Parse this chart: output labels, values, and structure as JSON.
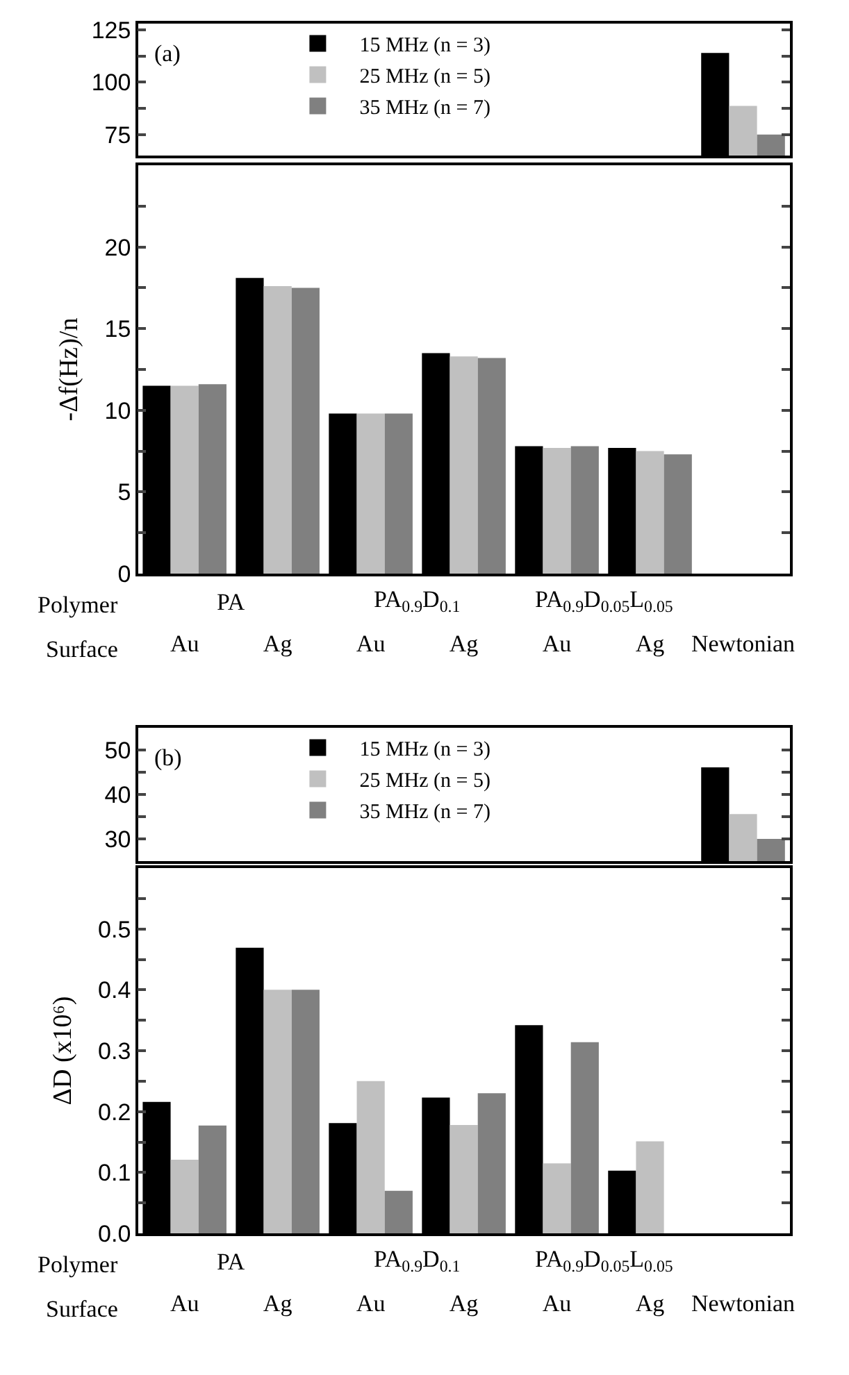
{
  "chart_data": [
    {
      "type": "bar",
      "categories": [
        null,
        null,
        null,
        null,
        null,
        null,
        null
      ],
      "tick_labels": "y",
      "legend": "top left",
      "annotations": [
        "(a)"
      ],
      "ylim": [
        65,
        128
      ],
      "yticks": [
        75,
        {
          "value": 87.5,
          "label": null
        },
        100,
        {
          "value": 112.5,
          "label": null
        },
        125
      ],
      "series": [
        {
          "name": "15 MHz (n = 3)",
          "color": "#000000",
          "values": [
            null,
            null,
            null,
            null,
            null,
            null,
            114
          ]
        },
        {
          "name": "25 MHz (n = 5)",
          "color": "#c0c0c0",
          "values": [
            null,
            null,
            null,
            null,
            null,
            null,
            88.7
          ]
        },
        {
          "name": "35 MHz (n = 7)",
          "color": "#808080",
          "values": [
            null,
            null,
            null,
            null,
            null,
            null,
            75
          ]
        }
      ]
    },
    {
      "type": "bar",
      "categories": [
        "Au",
        "Ag",
        "Au",
        "Ag",
        "Au",
        "Ag",
        "Newtonian"
      ],
      "ylabel": "-Δf(Hz)/n",
      "annotations": [
        "Polymer",
        "Surface",
        "PA",
        "PA$_{0.9}$D$_{0.1}$",
        "PA$_{0.9}$D$_{0.05}$L$_{0.05}$"
      ],
      "ylim": [
        0,
        25
      ],
      "yticks": [
        0,
        {
          "value": 2.5,
          "label": null
        },
        5,
        {
          "value": 7.5,
          "label": null
        },
        10,
        {
          "value": 12.5,
          "label": null
        },
        15,
        {
          "value": 17.5,
          "label": null
        },
        20,
        {
          "value": 22.5,
          "label": null
        }
      ],
      "series": [
        {
          "color": "#000000",
          "values": [
            11.5,
            18.1,
            9.8,
            13.5,
            7.8,
            7.7,
            null
          ]
        },
        {
          "color": "#c0c0c0",
          "values": [
            11.5,
            17.6,
            9.8,
            13.3,
            7.7,
            7.5,
            null
          ]
        },
        {
          "color": "#808080",
          "values": [
            11.6,
            17.5,
            9.8,
            13.2,
            7.8,
            7.3,
            null
          ]
        }
      ]
    },
    {
      "type": "bar",
      "categories": [
        null,
        null,
        null,
        null,
        null,
        null,
        null
      ],
      "tick_labels": "y",
      "legend": "top left",
      "annotations": [
        "(b)"
      ],
      "ylim": [
        25,
        55
      ],
      "yticks": [
        30,
        {
          "value": 35,
          "label": null
        },
        40,
        {
          "value": 45,
          "label": null
        },
        50
      ],
      "series": [
        {
          "name": "15 MHz (n = 3)",
          "color": "#000000",
          "values": [
            null,
            null,
            null,
            null,
            null,
            null,
            46.1
          ]
        },
        {
          "name": "25 MHz (n = 5)",
          "color": "#c0c0c0",
          "values": [
            null,
            null,
            null,
            null,
            null,
            null,
            35.6
          ]
        },
        {
          "name": "35 MHz (n = 7)",
          "color": "#808080",
          "values": [
            null,
            null,
            null,
            null,
            null,
            null,
            30
          ]
        }
      ]
    },
    {
      "type": "bar",
      "categories": [
        "Au",
        "Ag",
        "Au",
        "Ag",
        "Au",
        "Ag",
        "Newtonian"
      ],
      "ylabel": "ΔD (x10⁶)",
      "annotations": [
        "Polymer",
        "Surface",
        "PA",
        "PA$_{0.9}$D$_{0.1}$",
        "PA$_{0.9}$D$_{0.05}$L$_{0.05}$"
      ],
      "ylim": [
        0,
        0.6
      ],
      "yticks": [
        {
          "value": 0,
          "label": "0.0"
        },
        {
          "value": 0.05,
          "label": null
        },
        0.1,
        {
          "value": 0.15,
          "label": null
        },
        0.2,
        {
          "value": 0.25,
          "label": null
        },
        0.3,
        {
          "value": 0.35,
          "label": null
        },
        0.4,
        {
          "value": 0.45,
          "label": null
        },
        0.5,
        {
          "value": 0.55,
          "label": null
        }
      ],
      "series": [
        {
          "color": "#000000",
          "values": [
            0.216,
            0.469,
            0.181,
            0.223,
            0.342,
            0.103,
            null
          ]
        },
        {
          "color": "#c0c0c0",
          "values": [
            0.121,
            0.4,
            0.25,
            0.178,
            0.115,
            0.151,
            null
          ]
        },
        {
          "color": "#808080",
          "values": [
            0.177,
            0.4,
            0.07,
            0.23,
            0.314,
            null,
            null
          ]
        }
      ]
    }
  ]
}
